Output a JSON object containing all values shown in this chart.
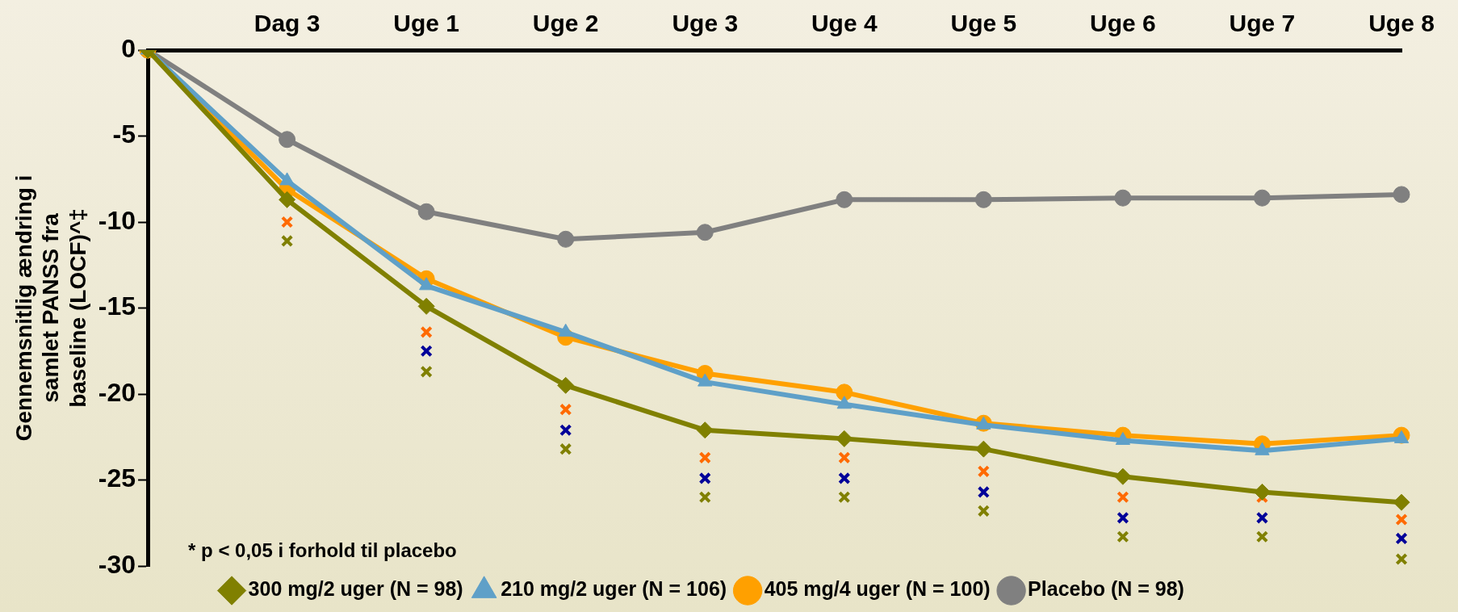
{
  "chart_data": {
    "type": "line",
    "ylabel": "Gennemsnitlig ændring i samlet PANSS fra baseline (LOCF)^‡",
    "categories": [
      null,
      "Dag 3",
      "Uge 1",
      "Uge 2",
      "Uge 3",
      "Uge 4",
      "Uge 5",
      "Uge 6",
      "Uge 7",
      "Uge 8"
    ],
    "series": [
      {
        "name": "300 mg/2 uger (N = 98)",
        "color": "#808000",
        "marker": "diamond",
        "values": [
          0,
          -8.7,
          -14.9,
          -19.5,
          -22.1,
          -22.6,
          -23.2,
          -24.8,
          -25.7,
          -26.3
        ]
      },
      {
        "name": "210 mg/2 uger (N = 106)",
        "color": "#5fa0c8",
        "marker": "triangle",
        "values": [
          0,
          -7.6,
          -13.7,
          -16.4,
          -19.3,
          -20.6,
          -21.8,
          -22.7,
          -23.3,
          -22.6
        ]
      },
      {
        "name": "405 mg/4 uger (N = 100)",
        "color": "#ffa000",
        "marker": "circle",
        "values": [
          0,
          -8.1,
          -13.3,
          -16.7,
          -18.8,
          -19.9,
          -21.7,
          -22.4,
          -22.9,
          -22.4
        ]
      },
      {
        "name": "Placebo (N = 98)",
        "color": "#808080",
        "marker": "circle",
        "values": [
          0,
          -5.2,
          -9.4,
          -11.0,
          -10.6,
          -8.7,
          -8.7,
          -8.6,
          -8.6,
          -8.4
        ]
      },
      {
        "type": "scatter",
        "color": "#ff6a00",
        "marker": "cross",
        "x": [
          "Dag 3",
          "Uge 1",
          "Uge 2",
          "Uge 3",
          "Uge 4",
          "Uge 5",
          "Uge 6",
          "Uge 7",
          "Uge 8"
        ],
        "values": [
          -10.0,
          -16.4,
          -20.9,
          -23.7,
          -23.7,
          -24.5,
          -26.0,
          -26.0,
          -27.3
        ]
      },
      {
        "type": "scatter",
        "color": "#000099",
        "marker": "cross",
        "x": [
          "Uge 1",
          "Uge 2",
          "Uge 3",
          "Uge 4",
          "Uge 5",
          "Uge 6",
          "Uge 7",
          "Uge 8"
        ],
        "values": [
          -17.5,
          -22.1,
          -24.9,
          -24.9,
          -25.7,
          -27.2,
          -27.2,
          -28.4
        ]
      },
      {
        "type": "scatter",
        "color": "#808000",
        "marker": "cross",
        "x": [
          "Dag 3",
          "Uge 1",
          "Uge 2",
          "Uge 3",
          "Uge 4",
          "Uge 5",
          "Uge 6",
          "Uge 7",
          "Uge 8"
        ],
        "values": [
          -11.1,
          -18.7,
          -23.2,
          -26.0,
          -26.0,
          -26.8,
          -28.3,
          -28.3,
          -29.6
        ]
      }
    ],
    "ylim": [
      -30,
      0
    ],
    "yticks": [
      -30,
      -25,
      -20,
      -15,
      -10,
      -5,
      0
    ],
    "grid": false,
    "legend": "bottom",
    "annotations": [
      "* p < 0,05 i forhold til placebo"
    ]
  }
}
